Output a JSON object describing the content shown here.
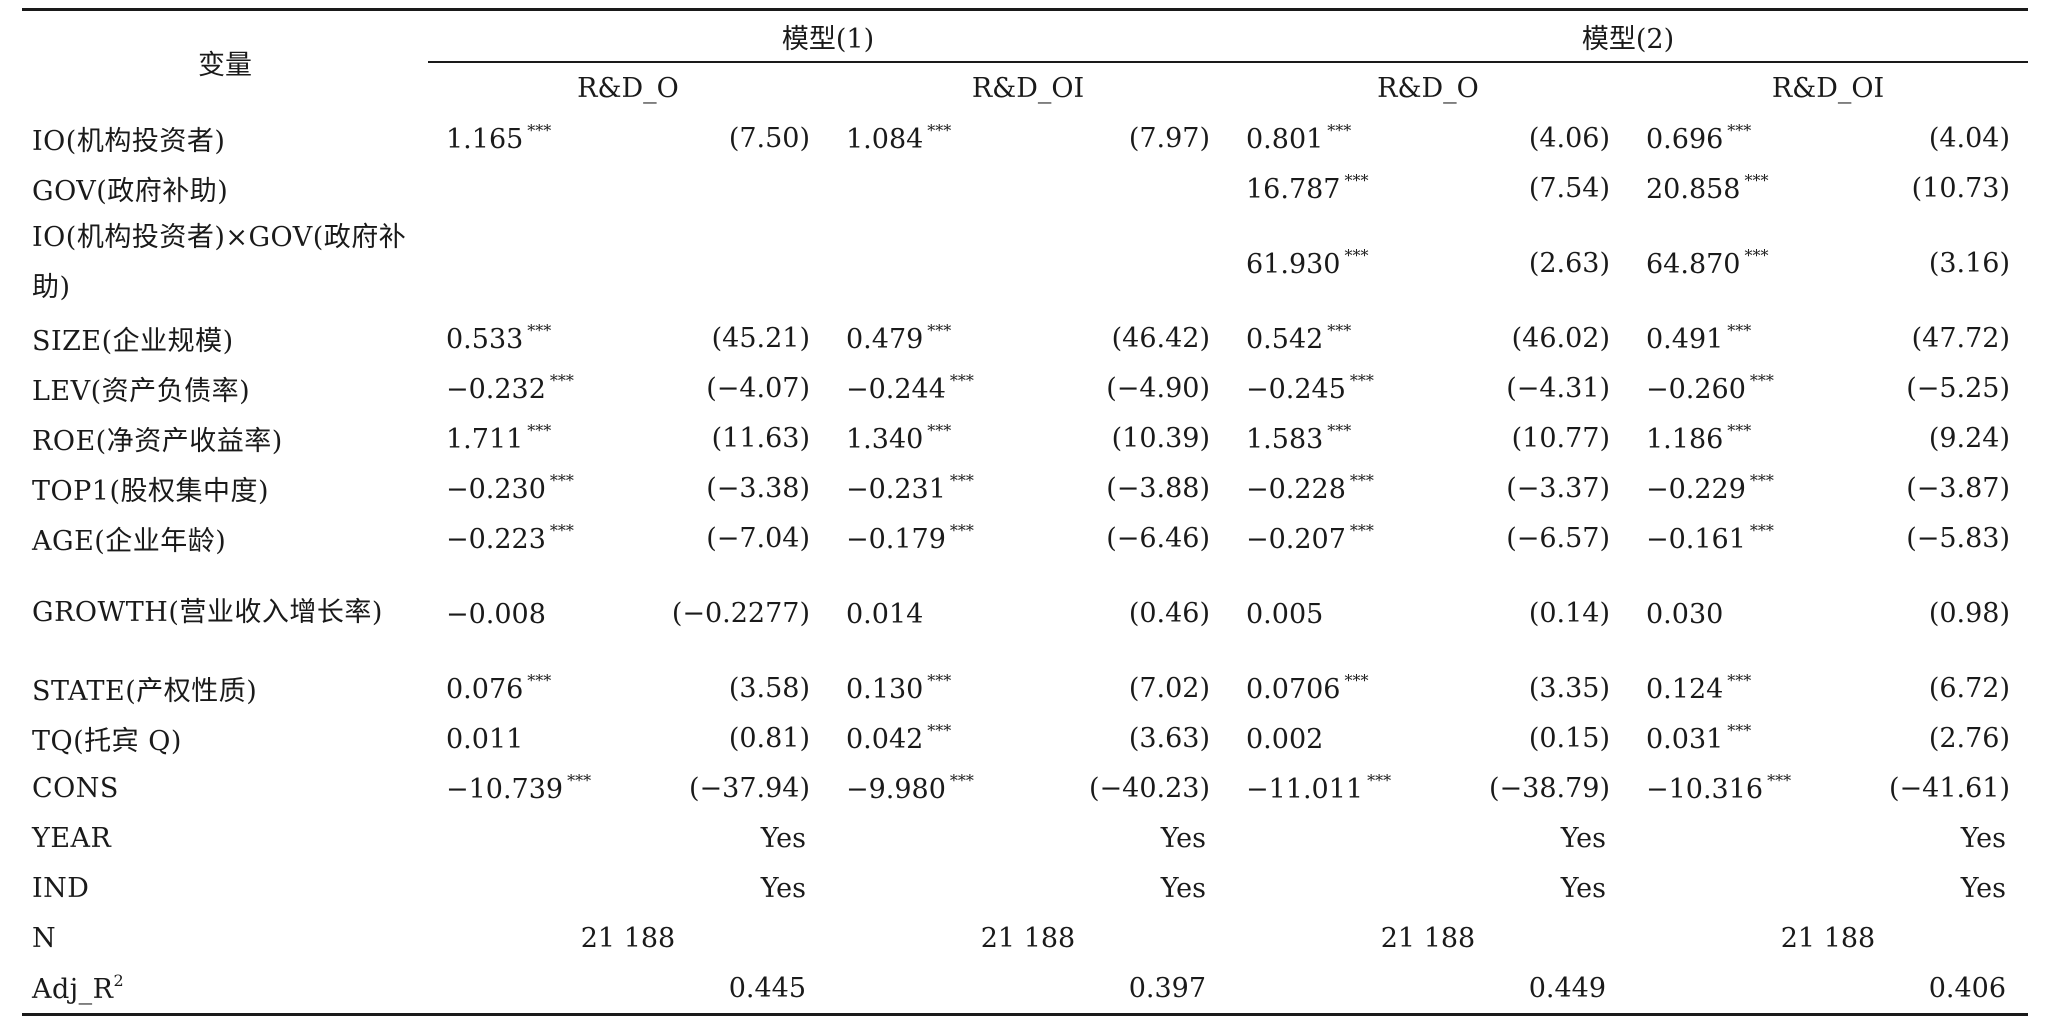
{
  "header": {
    "variable_label": "变量",
    "models": [
      {
        "label": "模型(1)",
        "columns": [
          "R&D_O",
          "R&D_OI"
        ]
      },
      {
        "label": "模型(2)",
        "columns": [
          "R&D_O",
          "R&D_OI"
        ]
      }
    ]
  },
  "rows": [
    {
      "name": "IO(机构投资者)",
      "cells": [
        [
          "1.165",
          "***",
          "(7.50)"
        ],
        [
          "1.084",
          "***",
          "(7.97)"
        ],
        [
          "0.801",
          "***",
          "(4.06)"
        ],
        [
          "0.696",
          "***",
          "(4.04)"
        ]
      ]
    },
    {
      "name": "GOV(政府补助)",
      "cells": [
        [
          "",
          "",
          ""
        ],
        [
          "",
          "",
          ""
        ],
        [
          "16.787",
          "***",
          "(7.54)"
        ],
        [
          "20.858",
          "***",
          "(10.73)"
        ]
      ]
    },
    {
      "name": "IO(机构投资者)×GOV(政府补助)",
      "cells": [
        [
          "",
          "",
          ""
        ],
        [
          "",
          "",
          ""
        ],
        [
          "61.930",
          "***",
          "(2.63)"
        ],
        [
          "64.870",
          "***",
          "(3.16)"
        ]
      ]
    },
    {
      "name": "SIZE(企业规模)",
      "cells": [
        [
          "0.533",
          "***",
          "(45.21)"
        ],
        [
          "0.479",
          "***",
          "(46.42)"
        ],
        [
          "0.542",
          "***",
          "(46.02)"
        ],
        [
          "0.491",
          "***",
          "(47.72)"
        ]
      ]
    },
    {
      "name": "LEV(资产负债率)",
      "cells": [
        [
          "−0.232",
          "***",
          "(−4.07)"
        ],
        [
          "−0.244",
          "***",
          "(−4.90)"
        ],
        [
          "−0.245",
          "***",
          "(−4.31)"
        ],
        [
          "−0.260",
          "***",
          "(−5.25)"
        ]
      ]
    },
    {
      "name": "ROE(净资产收益率)",
      "cells": [
        [
          "1.711",
          "***",
          "(11.63)"
        ],
        [
          "1.340",
          "***",
          "(10.39)"
        ],
        [
          "1.583",
          "***",
          "(10.77)"
        ],
        [
          "1.186",
          "***",
          "(9.24)"
        ]
      ]
    },
    {
      "name": "TOP1(股权集中度)",
      "cells": [
        [
          "−0.230",
          "***",
          "(−3.38)"
        ],
        [
          "−0.231",
          "***",
          "(−3.88)"
        ],
        [
          "−0.228",
          "***",
          "(−3.37)"
        ],
        [
          "−0.229",
          "***",
          "(−3.87)"
        ]
      ]
    },
    {
      "name": "AGE(企业年龄)",
      "cells": [
        [
          "−0.223",
          "***",
          "(−7.04)"
        ],
        [
          "−0.179",
          "***",
          "(−6.46)"
        ],
        [
          "−0.207",
          "***",
          "(−6.57)"
        ],
        [
          "−0.161",
          "***",
          "(−5.83)"
        ]
      ]
    },
    {
      "name": "GROWTH(营业收入增长率)",
      "cells": [
        [
          "−0.008",
          "",
          "(−0.2277)"
        ],
        [
          "0.014",
          "",
          "(0.46)"
        ],
        [
          "0.005",
          "",
          "(0.14)"
        ],
        [
          "0.030",
          "",
          "(0.98)"
        ]
      ]
    },
    {
      "name": "STATE(产权性质)",
      "cells": [
        [
          "0.076",
          "***",
          "(3.58)"
        ],
        [
          "0.130",
          "***",
          "(7.02)"
        ],
        [
          "0.0706",
          "***",
          "(3.35)"
        ],
        [
          "0.124",
          "***",
          "(6.72)"
        ]
      ]
    },
    {
      "name": "TQ(托宾 Q)",
      "cells": [
        [
          "0.011",
          "",
          "(0.81)"
        ],
        [
          "0.042",
          "***",
          "(3.63)"
        ],
        [
          "0.002",
          "",
          "(0.15)"
        ],
        [
          "0.031",
          "***",
          "(2.76)"
        ]
      ]
    },
    {
      "name": "CONS",
      "cells": [
        [
          "−10.739",
          "***",
          "(−37.94)"
        ],
        [
          "−9.980",
          "***",
          "(−40.23)"
        ],
        [
          "−11.011",
          "***",
          "(−38.79)"
        ],
        [
          "−10.316",
          "***",
          "(−41.61)"
        ]
      ]
    }
  ],
  "controls": [
    {
      "name": "YEAR",
      "values": [
        "Yes",
        "Yes",
        "Yes",
        "Yes"
      ]
    },
    {
      "name": "IND",
      "values": [
        "Yes",
        "Yes",
        "Yes",
        "Yes"
      ]
    }
  ],
  "stats": [
    {
      "name": "N",
      "values": [
        "21 188",
        "21 188",
        "21 188",
        "21 188"
      ],
      "align": "center"
    },
    {
      "name": "Adj_R",
      "sup": "2",
      "values": [
        "0.445",
        "0.397",
        "0.449",
        "0.406"
      ],
      "align": "right"
    }
  ]
}
